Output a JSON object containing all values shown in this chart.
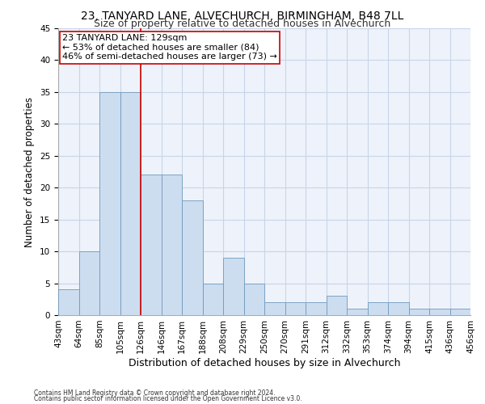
{
  "title1": "23, TANYARD LANE, ALVECHURCH, BIRMINGHAM, B48 7LL",
  "title2": "Size of property relative to detached houses in Alvechurch",
  "xlabel": "Distribution of detached houses by size in Alvechurch",
  "ylabel": "Number of detached properties",
  "footnote1": "Contains HM Land Registry data © Crown copyright and database right 2024.",
  "footnote2": "Contains public sector information licensed under the Open Government Licence v3.0.",
  "annotation_line1": "23 TANYARD LANE: 129sqm",
  "annotation_line2": "← 53% of detached houses are smaller (84)",
  "annotation_line3": "46% of semi-detached houses are larger (73) →",
  "bar_values": [
    4,
    10,
    35,
    35,
    22,
    22,
    18,
    5,
    9,
    5,
    2,
    2,
    2,
    3,
    1,
    2,
    2,
    1,
    1,
    1
  ],
  "bin_labels": [
    "43sqm",
    "64sqm",
    "85sqm",
    "105sqm",
    "126sqm",
    "146sqm",
    "167sqm",
    "188sqm",
    "208sqm",
    "229sqm",
    "250sqm",
    "270sqm",
    "291sqm",
    "312sqm",
    "332sqm",
    "353sqm",
    "374sqm",
    "394sqm",
    "415sqm",
    "436sqm",
    "456sqm"
  ],
  "bar_color": "#ccddf0",
  "bar_edge_color": "#7099bb",
  "vline_color": "#cc0000",
  "annotation_box_color": "#cc0000",
  "grid_color": "#c8d4e8",
  "plot_bg_color": "#eef3fb",
  "ylim": [
    0,
    45
  ],
  "yticks": [
    0,
    5,
    10,
    15,
    20,
    25,
    30,
    35,
    40,
    45
  ],
  "title1_fontsize": 10,
  "title2_fontsize": 9,
  "xlabel_fontsize": 9,
  "ylabel_fontsize": 8.5,
  "annotation_fontsize": 8,
  "tick_fontsize": 7.5,
  "footnote_fontsize": 5.5
}
